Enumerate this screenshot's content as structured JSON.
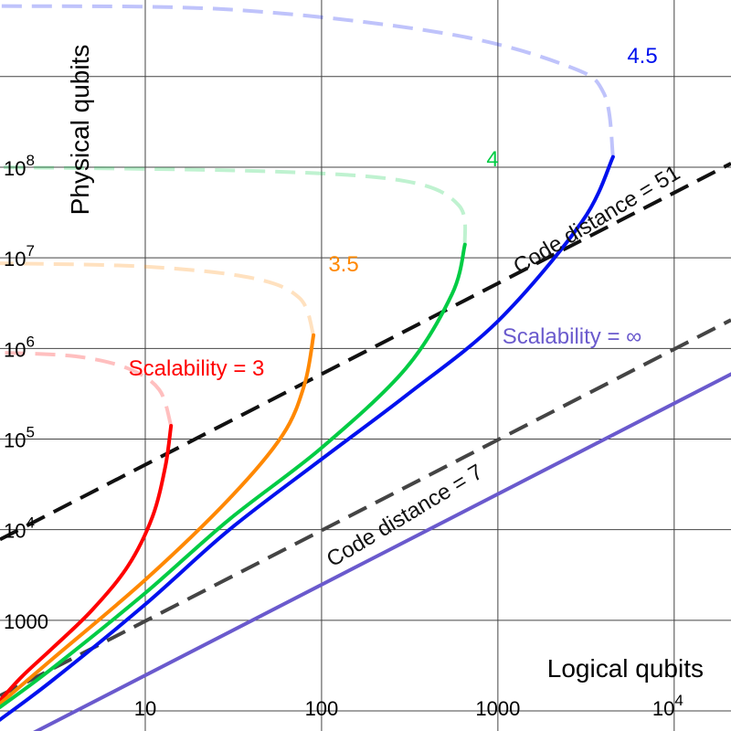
{
  "chart_data": {
    "type": "line",
    "xlabel": "Logical qubits",
    "ylabel": "Physical qubits",
    "xscale": "log",
    "yscale": "log",
    "xlim": [
      1.5,
      21000
    ],
    "ylim": [
      60,
      7000000000
    ],
    "grid": true,
    "x_ticks": [
      {
        "value": 10,
        "label": "10"
      },
      {
        "value": 100,
        "label": "100"
      },
      {
        "value": 1000,
        "label": "1000"
      },
      {
        "value": 10000,
        "label": "10",
        "exp": "4"
      }
    ],
    "y_ticks": [
      {
        "value": 1000,
        "label": "1000"
      },
      {
        "value": 10000,
        "label": "10",
        "exp": "4"
      },
      {
        "value": 100000,
        "label": "10",
        "exp": "5"
      },
      {
        "value": 1000000,
        "label": "10",
        "exp": "6"
      },
      {
        "value": 10000000,
        "label": "10",
        "exp": "7"
      },
      {
        "value": 100000000,
        "label": "10",
        "exp": "8"
      }
    ],
    "series": [
      {
        "label": "Scalability = 3",
        "color": "#ff0000",
        "solid": [
          [
            1.5,
            130
          ],
          [
            2,
            240
          ],
          [
            3,
            500
          ],
          [
            5,
            1300
          ],
          [
            8,
            4000
          ],
          [
            11,
            14000
          ],
          [
            13,
            50000
          ],
          [
            14,
            140000
          ]
        ],
        "dashed": [
          [
            14,
            140000
          ],
          [
            12,
            350000
          ],
          [
            8,
            600000
          ],
          [
            4,
            820000
          ],
          [
            1.5,
            900000
          ]
        ]
      },
      {
        "label": "3.5",
        "color": "#ff8800",
        "solid": [
          [
            1.5,
            120
          ],
          [
            3,
            380
          ],
          [
            10,
            2800
          ],
          [
            30,
            22000
          ],
          [
            60,
            110000
          ],
          [
            80,
            400000
          ],
          [
            90,
            1400000
          ]
        ],
        "dashed": [
          [
            90,
            1400000
          ],
          [
            75,
            3600000
          ],
          [
            40,
            6000000
          ],
          [
            10,
            8000000
          ],
          [
            1.5,
            8700000
          ]
        ]
      },
      {
        "label": "4",
        "color": "#00cc44",
        "solid": [
          [
            1.5,
            110
          ],
          [
            3,
            300
          ],
          [
            10,
            2000
          ],
          [
            30,
            13000
          ],
          [
            100,
            80000
          ],
          [
            300,
            600000
          ],
          [
            550,
            4000000
          ],
          [
            650,
            14000000
          ]
        ],
        "dashed": [
          [
            650,
            14000000
          ],
          [
            600,
            38000000
          ],
          [
            300,
            70000000
          ],
          [
            50,
            90000000
          ],
          [
            1.5,
            100000000
          ]
        ]
      },
      {
        "label": "4.5",
        "color": "#0011ee",
        "solid": [
          [
            1.5,
            80
          ],
          [
            3,
            220
          ],
          [
            10,
            1500
          ],
          [
            30,
            10000
          ],
          [
            100,
            60000
          ],
          [
            300,
            300000
          ],
          [
            1000,
            2000000
          ],
          [
            3000,
            25000000
          ],
          [
            4500,
            130000000
          ]
        ],
        "dashed": [
          [
            4500,
            130000000
          ],
          [
            4000,
            650000000
          ],
          [
            2500,
            1300000000
          ],
          [
            500,
            3000000000
          ],
          [
            30,
            5500000000
          ],
          [
            1.5,
            6000000000
          ]
        ]
      },
      {
        "label": "Scalability = ∞",
        "color": "#6a5acd",
        "solid": [
          [
            1.5,
            37
          ],
          [
            21000,
            520000
          ]
        ]
      }
    ],
    "reference_lines": [
      {
        "label": "Code distance = 51",
        "color": "#111111",
        "points": [
          [
            1.5,
            7800
          ],
          [
            21000,
            110000000
          ]
        ]
      },
      {
        "label": "Code distance = 7",
        "color": "#444444",
        "points": [
          [
            1.5,
            147
          ],
          [
            21000,
            2060000
          ]
        ]
      }
    ]
  }
}
